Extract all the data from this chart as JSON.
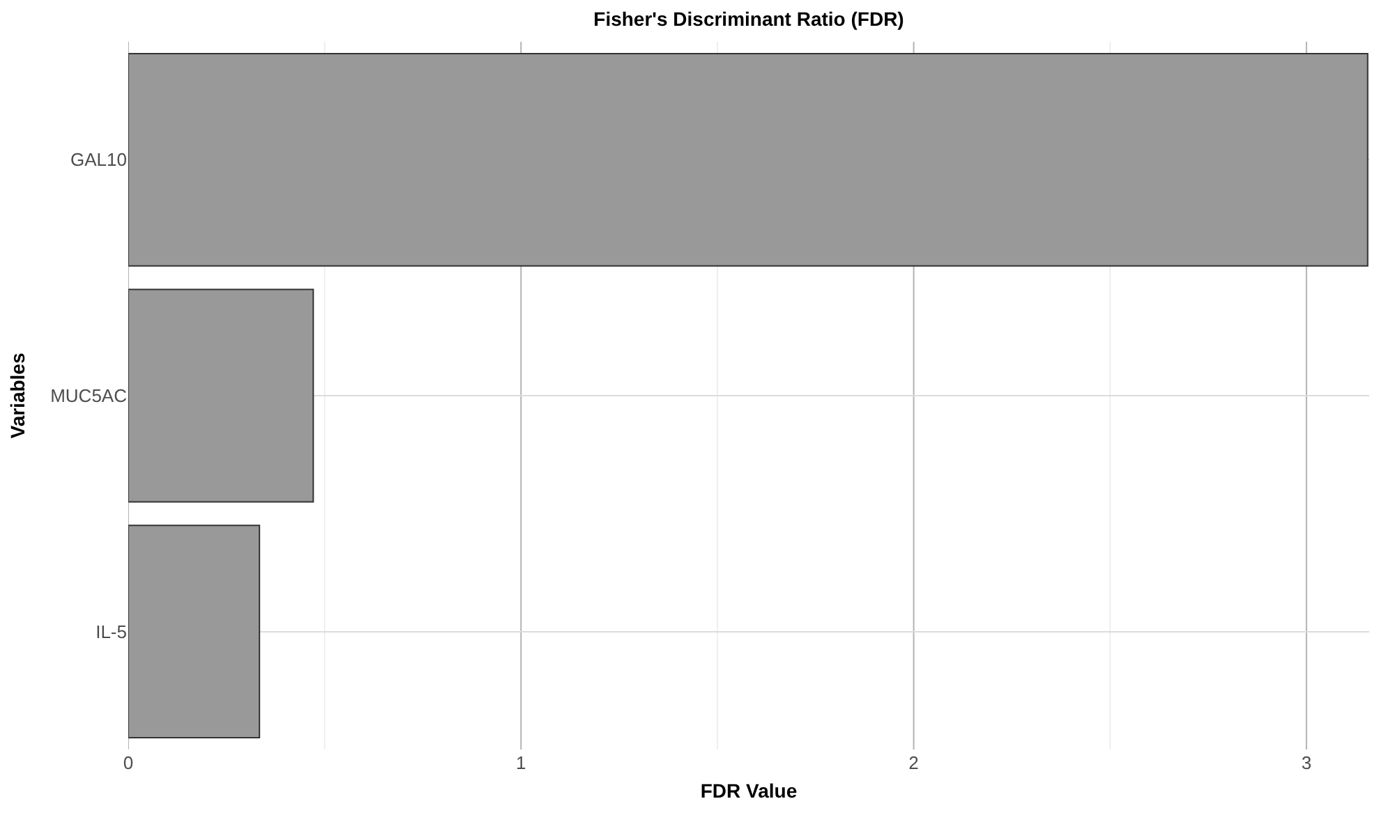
{
  "chart_data": {
    "type": "bar",
    "orientation": "horizontal",
    "title": "Fisher's Discriminant Ratio (FDR)",
    "xlabel": "FDR Value",
    "ylabel": "Variables",
    "categories": [
      "GAL10",
      "MUC5AC",
      "IL-5"
    ],
    "values": [
      3.156,
      0.471,
      0.334
    ],
    "color": "#999999",
    "xlim": [
      0,
      3.16
    ],
    "xticks": [
      0,
      {
        "value": 0.5,
        "label": null
      },
      1,
      {
        "value": 1.5,
        "label": null
      },
      2,
      {
        "value": 2.5,
        "label": null
      },
      3
    ],
    "grid": true
  }
}
